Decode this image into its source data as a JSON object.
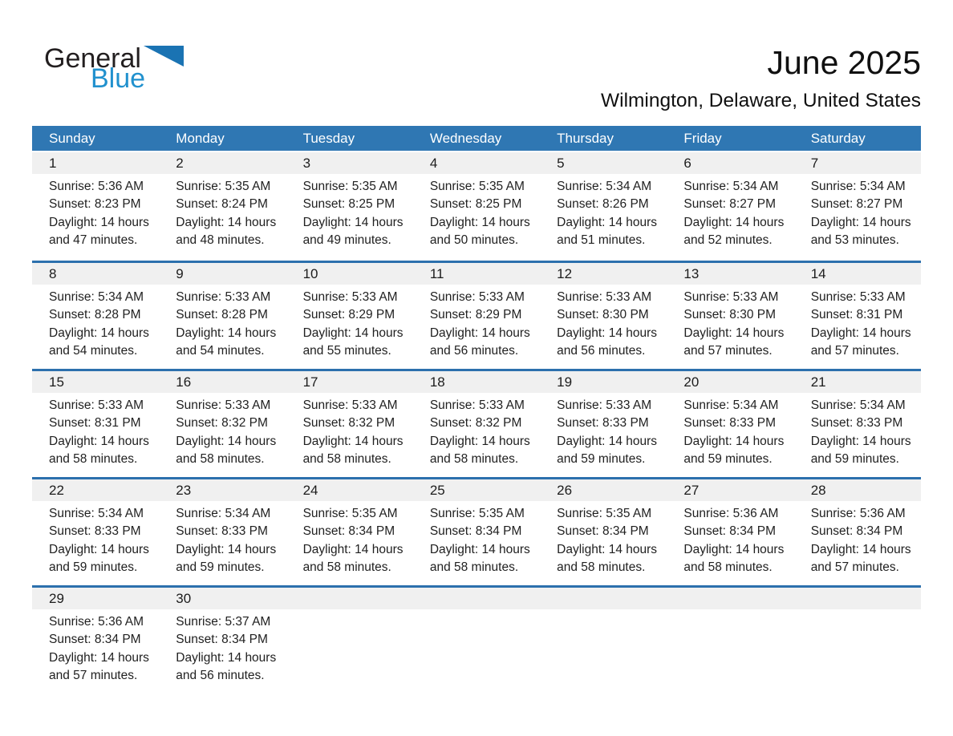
{
  "logo": {
    "general": "General",
    "blue": "Blue"
  },
  "header": {
    "title": "June 2025",
    "subtitle": "Wilmington, Delaware, United States"
  },
  "colors": {
    "header_bar": "#2F77B3",
    "week_separator": "#2C70AD",
    "day_number_band": "#F0F0F0",
    "logo_blue": "#2191CE",
    "logo_triangle": "#1A73B3"
  },
  "calendar": {
    "weekday_headers": [
      "Sunday",
      "Monday",
      "Tuesday",
      "Wednesday",
      "Thursday",
      "Friday",
      "Saturday"
    ],
    "weeks": [
      [
        {
          "day": "1",
          "sunrise": "Sunrise: 5:36 AM",
          "sunset": "Sunset: 8:23 PM",
          "daylight1": "Daylight: 14 hours",
          "daylight2": "and 47 minutes."
        },
        {
          "day": "2",
          "sunrise": "Sunrise: 5:35 AM",
          "sunset": "Sunset: 8:24 PM",
          "daylight1": "Daylight: 14 hours",
          "daylight2": "and 48 minutes."
        },
        {
          "day": "3",
          "sunrise": "Sunrise: 5:35 AM",
          "sunset": "Sunset: 8:25 PM",
          "daylight1": "Daylight: 14 hours",
          "daylight2": "and 49 minutes."
        },
        {
          "day": "4",
          "sunrise": "Sunrise: 5:35 AM",
          "sunset": "Sunset: 8:25 PM",
          "daylight1": "Daylight: 14 hours",
          "daylight2": "and 50 minutes."
        },
        {
          "day": "5",
          "sunrise": "Sunrise: 5:34 AM",
          "sunset": "Sunset: 8:26 PM",
          "daylight1": "Daylight: 14 hours",
          "daylight2": "and 51 minutes."
        },
        {
          "day": "6",
          "sunrise": "Sunrise: 5:34 AM",
          "sunset": "Sunset: 8:27 PM",
          "daylight1": "Daylight: 14 hours",
          "daylight2": "and 52 minutes."
        },
        {
          "day": "7",
          "sunrise": "Sunrise: 5:34 AM",
          "sunset": "Sunset: 8:27 PM",
          "daylight1": "Daylight: 14 hours",
          "daylight2": "and 53 minutes."
        }
      ],
      [
        {
          "day": "8",
          "sunrise": "Sunrise: 5:34 AM",
          "sunset": "Sunset: 8:28 PM",
          "daylight1": "Daylight: 14 hours",
          "daylight2": "and 54 minutes."
        },
        {
          "day": "9",
          "sunrise": "Sunrise: 5:33 AM",
          "sunset": "Sunset: 8:28 PM",
          "daylight1": "Daylight: 14 hours",
          "daylight2": "and 54 minutes."
        },
        {
          "day": "10",
          "sunrise": "Sunrise: 5:33 AM",
          "sunset": "Sunset: 8:29 PM",
          "daylight1": "Daylight: 14 hours",
          "daylight2": "and 55 minutes."
        },
        {
          "day": "11",
          "sunrise": "Sunrise: 5:33 AM",
          "sunset": "Sunset: 8:29 PM",
          "daylight1": "Daylight: 14 hours",
          "daylight2": "and 56 minutes."
        },
        {
          "day": "12",
          "sunrise": "Sunrise: 5:33 AM",
          "sunset": "Sunset: 8:30 PM",
          "daylight1": "Daylight: 14 hours",
          "daylight2": "and 56 minutes."
        },
        {
          "day": "13",
          "sunrise": "Sunrise: 5:33 AM",
          "sunset": "Sunset: 8:30 PM",
          "daylight1": "Daylight: 14 hours",
          "daylight2": "and 57 minutes."
        },
        {
          "day": "14",
          "sunrise": "Sunrise: 5:33 AM",
          "sunset": "Sunset: 8:31 PM",
          "daylight1": "Daylight: 14 hours",
          "daylight2": "and 57 minutes."
        }
      ],
      [
        {
          "day": "15",
          "sunrise": "Sunrise: 5:33 AM",
          "sunset": "Sunset: 8:31 PM",
          "daylight1": "Daylight: 14 hours",
          "daylight2": "and 58 minutes."
        },
        {
          "day": "16",
          "sunrise": "Sunrise: 5:33 AM",
          "sunset": "Sunset: 8:32 PM",
          "daylight1": "Daylight: 14 hours",
          "daylight2": "and 58 minutes."
        },
        {
          "day": "17",
          "sunrise": "Sunrise: 5:33 AM",
          "sunset": "Sunset: 8:32 PM",
          "daylight1": "Daylight: 14 hours",
          "daylight2": "and 58 minutes."
        },
        {
          "day": "18",
          "sunrise": "Sunrise: 5:33 AM",
          "sunset": "Sunset: 8:32 PM",
          "daylight1": "Daylight: 14 hours",
          "daylight2": "and 58 minutes."
        },
        {
          "day": "19",
          "sunrise": "Sunrise: 5:33 AM",
          "sunset": "Sunset: 8:33 PM",
          "daylight1": "Daylight: 14 hours",
          "daylight2": "and 59 minutes."
        },
        {
          "day": "20",
          "sunrise": "Sunrise: 5:34 AM",
          "sunset": "Sunset: 8:33 PM",
          "daylight1": "Daylight: 14 hours",
          "daylight2": "and 59 minutes."
        },
        {
          "day": "21",
          "sunrise": "Sunrise: 5:34 AM",
          "sunset": "Sunset: 8:33 PM",
          "daylight1": "Daylight: 14 hours",
          "daylight2": "and 59 minutes."
        }
      ],
      [
        {
          "day": "22",
          "sunrise": "Sunrise: 5:34 AM",
          "sunset": "Sunset: 8:33 PM",
          "daylight1": "Daylight: 14 hours",
          "daylight2": "and 59 minutes."
        },
        {
          "day": "23",
          "sunrise": "Sunrise: 5:34 AM",
          "sunset": "Sunset: 8:33 PM",
          "daylight1": "Daylight: 14 hours",
          "daylight2": "and 59 minutes."
        },
        {
          "day": "24",
          "sunrise": "Sunrise: 5:35 AM",
          "sunset": "Sunset: 8:34 PM",
          "daylight1": "Daylight: 14 hours",
          "daylight2": "and 58 minutes."
        },
        {
          "day": "25",
          "sunrise": "Sunrise: 5:35 AM",
          "sunset": "Sunset: 8:34 PM",
          "daylight1": "Daylight: 14 hours",
          "daylight2": "and 58 minutes."
        },
        {
          "day": "26",
          "sunrise": "Sunrise: 5:35 AM",
          "sunset": "Sunset: 8:34 PM",
          "daylight1": "Daylight: 14 hours",
          "daylight2": "and 58 minutes."
        },
        {
          "day": "27",
          "sunrise": "Sunrise: 5:36 AM",
          "sunset": "Sunset: 8:34 PM",
          "daylight1": "Daylight: 14 hours",
          "daylight2": "and 58 minutes."
        },
        {
          "day": "28",
          "sunrise": "Sunrise: 5:36 AM",
          "sunset": "Sunset: 8:34 PM",
          "daylight1": "Daylight: 14 hours",
          "daylight2": "and 57 minutes."
        }
      ],
      [
        {
          "day": "29",
          "sunrise": "Sunrise: 5:36 AM",
          "sunset": "Sunset: 8:34 PM",
          "daylight1": "Daylight: 14 hours",
          "daylight2": "and 57 minutes."
        },
        {
          "day": "30",
          "sunrise": "Sunrise: 5:37 AM",
          "sunset": "Sunset: 8:34 PM",
          "daylight1": "Daylight: 14 hours",
          "daylight2": "and 56 minutes."
        }
      ]
    ]
  }
}
